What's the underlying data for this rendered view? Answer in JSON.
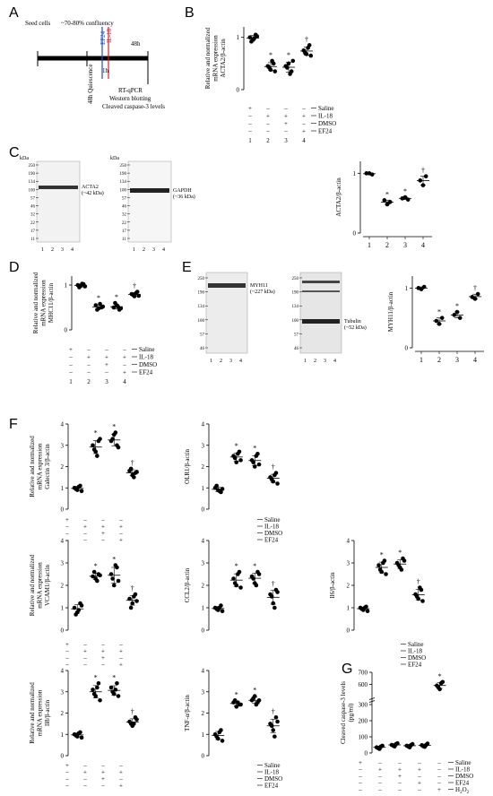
{
  "panel_letters": [
    "A",
    "B",
    "C",
    "D",
    "E",
    "F",
    "G"
  ],
  "panelA": {
    "seed_cells": "Seed cells",
    "confluency": "~70-80% confluency",
    "ef24": "EF24",
    "il18": "IL-18",
    "h48_right": "48h",
    "h48_quiescence": "48h Quiescence",
    "h1": "1h",
    "readouts": [
      "RT-qPCR",
      "Western blotting",
      "Cleaved caspase-3 levels"
    ]
  },
  "treatments4": {
    "labels": [
      "Saline",
      "IL-18",
      "DMSO",
      "EF24"
    ],
    "rows": [
      [
        "+",
        "–",
        "–",
        "–"
      ],
      [
        "–",
        "+",
        "+",
        "+"
      ],
      [
        "–",
        "–",
        "+",
        "–"
      ],
      [
        "–",
        "–",
        "–",
        "+"
      ]
    ],
    "numbers": [
      "1",
      "2",
      "3",
      "4"
    ]
  },
  "treatments5": {
    "labels": [
      "Saline",
      "IL-18",
      "DMSO",
      "EF24",
      "H2O2"
    ],
    "rows": [
      [
        "+",
        "–",
        "–",
        "–",
        "–"
      ],
      [
        "–",
        "+",
        "+",
        "+",
        "–"
      ],
      [
        "–",
        "–",
        "+",
        "–",
        "–"
      ],
      [
        "–",
        "–",
        "–",
        "+",
        "–"
      ],
      [
        "–",
        "–",
        "–",
        "–",
        "+"
      ]
    ]
  },
  "blots": {
    "kda": "kDa",
    "c_markers_left": [
      "250",
      "190",
      "134",
      "100",
      "57",
      "46",
      "32",
      "22",
      "17",
      "11"
    ],
    "c_markers_right": [
      "250",
      "190",
      "134",
      "100",
      "57",
      "46",
      "32",
      "22",
      "17",
      "11"
    ],
    "acta2": "ACTA2",
    "acta2_kda": "(~42 kDa)",
    "gapdh": "GAPDH",
    "gapdh_kda": "(~36 kDa)",
    "e_markers_left": [
      "250",
      "190",
      "134",
      "100",
      "57",
      "46"
    ],
    "e_markers_right": [
      "250",
      "190",
      "134",
      "100",
      "57",
      "46"
    ],
    "myh11": "MYH11",
    "myh11_kda": "(~227 kDa)",
    "tubulin": "Tubulin",
    "tubulin_kda": "(~52 kDa)",
    "lanes": [
      "1",
      "2",
      "3",
      "4"
    ]
  },
  "chart_data": [
    {
      "panel": "B",
      "type": "scatter",
      "ylabel": "Relative and normalized mRNA expression ACTA2/β-actin",
      "ylim": [
        0,
        1.2
      ],
      "yticks": [
        "0",
        "1"
      ],
      "groups": [
        [
          1.0,
          0.95,
          1.05,
          0.92,
          0.98,
          1.02
        ],
        [
          0.45,
          0.38,
          0.5,
          0.42,
          0.55,
          0.35
        ],
        [
          0.45,
          0.5,
          0.35,
          0.42,
          0.3,
          0.55
        ],
        [
          0.75,
          0.68,
          0.85,
          0.7,
          0.8,
          0.65
        ]
      ],
      "annotations": [
        "",
        "*",
        "*",
        "†"
      ]
    },
    {
      "panel": "C",
      "type": "scatter",
      "ylabel": "ACTA2/β-actin",
      "ylim": [
        0,
        1.2
      ],
      "yticks": [
        "0",
        "1"
      ],
      "groups": [
        [
          1.0,
          1.0,
          0.98
        ],
        [
          0.55,
          0.48,
          0.52
        ],
        [
          0.58,
          0.6,
          0.56
        ],
        [
          0.88,
          0.8,
          0.95
        ]
      ],
      "annotations": [
        "",
        "*",
        "*",
        "†"
      ],
      "xticks": [
        "1",
        "2",
        "3",
        "4"
      ]
    },
    {
      "panel": "D",
      "type": "scatter",
      "ylabel": "Relative and normalized mRNA expression MHC11/β-actin",
      "ylim": [
        0,
        1.2
      ],
      "yticks": [
        "0",
        "1"
      ],
      "groups": [
        [
          1.0,
          0.98,
          1.02,
          0.95,
          1.03,
          0.97
        ],
        [
          0.55,
          0.48,
          0.5,
          0.45,
          0.58,
          0.52
        ],
        [
          0.5,
          0.55,
          0.45,
          0.6,
          0.52,
          0.48
        ],
        [
          0.8,
          0.75,
          0.85,
          0.78,
          0.82,
          0.76
        ]
      ],
      "annotations": [
        "",
        "*",
        "*",
        "†"
      ]
    },
    {
      "panel": "E",
      "type": "scatter",
      "ylabel": "MYH11/β-actin",
      "ylim": [
        0,
        1.2
      ],
      "yticks": [
        "0",
        "1"
      ],
      "groups": [
        [
          1.0,
          0.98,
          1.02
        ],
        [
          0.45,
          0.4,
          0.5
        ],
        [
          0.55,
          0.6,
          0.5
        ],
        [
          0.85,
          0.82,
          0.9
        ]
      ],
      "annotations": [
        "",
        "*",
        "*",
        "†"
      ],
      "xticks": [
        "1",
        "2",
        "3",
        "4"
      ]
    },
    {
      "panel": "F1",
      "type": "scatter",
      "ylabel": "Relative and normalized mRNA expression Galectin 3/β-actin",
      "ylim": [
        0,
        4
      ],
      "yticks": [
        "0",
        "1",
        "2",
        "3",
        "4"
      ],
      "groups": [
        [
          1.0,
          0.9,
          1.1,
          0.95,
          1.05,
          0.85
        ],
        [
          3.0,
          2.7,
          3.2,
          2.8,
          2.5,
          3.3
        ],
        [
          3.2,
          3.5,
          3.0,
          3.3,
          3.6,
          2.9
        ],
        [
          1.8,
          1.6,
          1.7,
          1.9,
          1.5,
          1.75
        ]
      ],
      "annotations": [
        "",
        "*",
        "*",
        "†"
      ]
    },
    {
      "panel": "F2",
      "type": "scatter",
      "ylabel": "OLR1/β-actin",
      "ylim": [
        0,
        4
      ],
      "yticks": [
        "0",
        "1",
        "2",
        "3",
        "4"
      ],
      "groups": [
        [
          1.0,
          0.9,
          0.8,
          1.1,
          0.85,
          0.95
        ],
        [
          2.5,
          2.2,
          2.7,
          2.4,
          2.6,
          2.3
        ],
        [
          2.3,
          2.0,
          2.6,
          2.2,
          2.5,
          2.1
        ],
        [
          1.5,
          1.3,
          1.7,
          1.4,
          1.6,
          1.2
        ]
      ],
      "annotations": [
        "",
        "*",
        "*",
        "†"
      ]
    },
    {
      "panel": "F3",
      "type": "scatter",
      "ylabel": "Relative and normalized mRNA expression VCAM1/β-actin",
      "ylim": [
        0,
        4
      ],
      "yticks": [
        "0",
        "1",
        "2",
        "3",
        "4"
      ],
      "groups": [
        [
          1.0,
          0.8,
          1.2,
          0.7,
          0.9,
          1.1
        ],
        [
          2.4,
          2.3,
          2.5,
          2.6,
          2.2,
          2.45
        ],
        [
          2.5,
          2.0,
          2.8,
          2.3,
          2.9,
          2.2
        ],
        [
          1.4,
          1.2,
          1.6,
          1.0,
          1.5,
          1.3
        ]
      ],
      "annotations": [
        "",
        "*",
        "*",
        "†"
      ]
    },
    {
      "panel": "F4",
      "type": "scatter",
      "ylabel": "CCL2/β-actin",
      "ylim": [
        0,
        4
      ],
      "yticks": [
        "0",
        "1",
        "2",
        "3",
        "4"
      ],
      "groups": [
        [
          1.0,
          0.9,
          1.1,
          0.95,
          1.0,
          0.85
        ],
        [
          2.3,
          2.0,
          2.6,
          2.1,
          2.5,
          1.9
        ],
        [
          2.4,
          2.1,
          2.6,
          2.3,
          2.0,
          2.5
        ],
        [
          1.6,
          1.2,
          1.8,
          1.5,
          1.0,
          1.7
        ]
      ],
      "annotations": [
        "",
        "*",
        "*",
        "†"
      ]
    },
    {
      "panel": "F5",
      "type": "scatter",
      "ylabel": "Il6/β-actin",
      "ylim": [
        0,
        4
      ],
      "yticks": [
        "0",
        "1",
        "2",
        "3",
        "4"
      ],
      "groups": [
        [
          1.0,
          0.9,
          1.05,
          0.95,
          1.0,
          0.85
        ],
        [
          2.9,
          2.6,
          3.1,
          2.7,
          3.0,
          2.5
        ],
        [
          3.0,
          2.8,
          3.2,
          2.9,
          2.7,
          3.1
        ],
        [
          1.6,
          1.4,
          1.8,
          1.5,
          1.9,
          1.3
        ]
      ],
      "annotations": [
        "",
        "*",
        "*",
        "†"
      ]
    },
    {
      "panel": "F6",
      "type": "scatter",
      "ylabel": "Relative and normalized mRNA expression Il8/β-actin",
      "ylim": [
        0,
        4
      ],
      "yticks": [
        "0",
        "1",
        "2",
        "3",
        "4"
      ],
      "groups": [
        [
          1.0,
          0.9,
          1.1,
          0.95,
          1.05,
          0.85
        ],
        [
          3.1,
          2.8,
          3.4,
          2.9,
          3.2,
          2.6
        ],
        [
          3.2,
          2.9,
          3.4,
          3.0,
          3.1,
          2.8
        ],
        [
          1.6,
          1.4,
          1.8,
          1.5,
          1.5,
          1.7
        ]
      ],
      "annotations": [
        "",
        "*",
        "*",
        "†"
      ]
    },
    {
      "panel": "F7",
      "type": "scatter",
      "ylabel": "TNF-α/β-actin",
      "ylim": [
        0,
        4
      ],
      "yticks": [
        "0",
        "1",
        "2",
        "3",
        "4"
      ],
      "groups": [
        [
          1.0,
          0.8,
          1.2,
          0.9,
          1.1,
          0.7
        ],
        [
          2.5,
          2.3,
          2.4,
          2.6,
          2.5,
          2.4
        ],
        [
          2.6,
          2.8,
          2.5,
          2.7,
          2.4,
          2.6
        ],
        [
          1.5,
          1.2,
          1.8,
          1.4,
          0.9,
          1.6
        ]
      ],
      "annotations": [
        "",
        "*",
        "*",
        "†"
      ]
    },
    {
      "panel": "G",
      "type": "scatter",
      "ylabel": "Cleaved caspase-3 levels (pg/ml)",
      "ylim": [
        0,
        700
      ],
      "yticks": [
        "0",
        "100",
        "200",
        "300",
        "600",
        "700"
      ],
      "groups": [
        [
          35,
          25,
          45,
          30,
          40
        ],
        [
          50,
          40,
          60,
          45,
          55
        ],
        [
          45,
          35,
          55,
          40,
          50
        ],
        [
          48,
          38,
          58,
          42,
          50
        ],
        [
          590,
          560,
          620,
          575,
          610
        ]
      ],
      "annotations": [
        "",
        "",
        "",
        "",
        "*"
      ]
    }
  ]
}
